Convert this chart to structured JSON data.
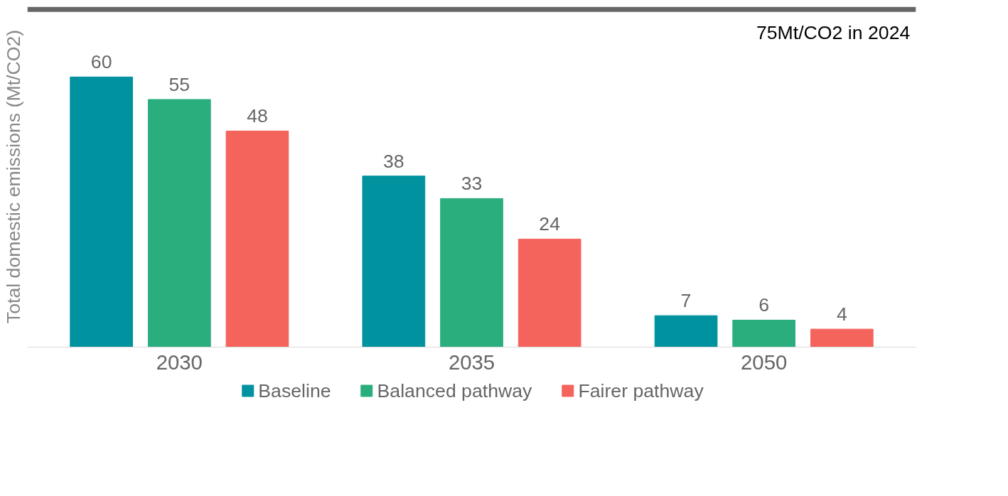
{
  "chart_data": {
    "type": "bar",
    "ylabel": "Total domestic emissions (Mt/CO2)",
    "categories": [
      "2030",
      "2035",
      "2050"
    ],
    "series": [
      {
        "name": "Baseline",
        "color": "#00929f",
        "values": [
          60,
          38,
          7
        ]
      },
      {
        "name": "Balanced pathway",
        "color": "#2bae7e",
        "values": [
          55,
          33,
          6
        ]
      },
      {
        "name": "Fairer pathway",
        "color": "#f4645c",
        "values": [
          48,
          24,
          4
        ]
      }
    ],
    "data_labels": true,
    "legend": "bottom",
    "grid": false,
    "tick_labels": "x",
    "ref_lines": [
      {
        "axis": "y",
        "value": 75,
        "label": "75Mt/CO2 in 2024",
        "color": "#666666"
      }
    ]
  }
}
